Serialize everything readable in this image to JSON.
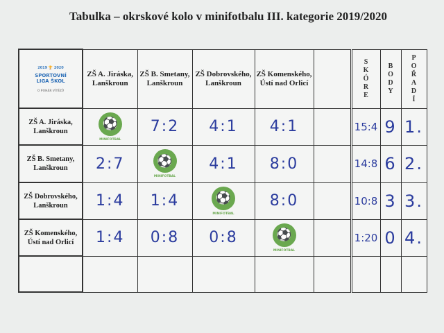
{
  "title": "Tabulka – okrskové kolo v minifotbalu III. kategorie 2019/2020",
  "logo": {
    "years": "2019 🏆 2020",
    "name_line1": "SPORTOVNÍ",
    "name_line2": "LIGA ŠKOL",
    "tagline": "O POHÁR VÍTĚZŮ"
  },
  "minifotbal_label": "MINIFOTBAL",
  "columns": [
    "ZŠ A. Jiráska, Lanškroun",
    "ZŠ B. Smetany, Lanškroun",
    "ZŠ Dobrovského, Lanškroun",
    "ZŠ Komenského, Ústí nad Orlicí",
    ""
  ],
  "summary_headers": {
    "score": "SKÓRE",
    "points": "BODY",
    "rank": "POŘADÍ"
  },
  "rows": [
    {
      "team": "ZŠ A. Jiráska, Lanškroun",
      "results": [
        "",
        "7:2",
        "4:1",
        "4:1",
        ""
      ],
      "score": "15:4",
      "points": "9",
      "rank": "1."
    },
    {
      "team": "ZŠ B. Smetany, Lanškroun",
      "results": [
        "2:7",
        "",
        "4:1",
        "8:0",
        ""
      ],
      "score": "14:8",
      "points": "6",
      "rank": "2."
    },
    {
      "team": "ZŠ Dobrovského, Lanškroun",
      "results": [
        "1:4",
        "1:4",
        "",
        "8:0",
        ""
      ],
      "score": "10:8",
      "points": "3",
      "rank": "3."
    },
    {
      "team": "ZŠ Komenského, Ústí nad Orlicí",
      "results": [
        "1:4",
        "0:8",
        "0:8",
        "",
        ""
      ],
      "score": "1:20",
      "points": "0",
      "rank": "4."
    },
    {
      "team": "",
      "results": [
        "",
        "",
        "",
        "",
        ""
      ],
      "score": "",
      "points": "",
      "rank": ""
    }
  ],
  "colors": {
    "ink": "#2b3c9e",
    "minifotbal_green": "#6aa84f"
  }
}
